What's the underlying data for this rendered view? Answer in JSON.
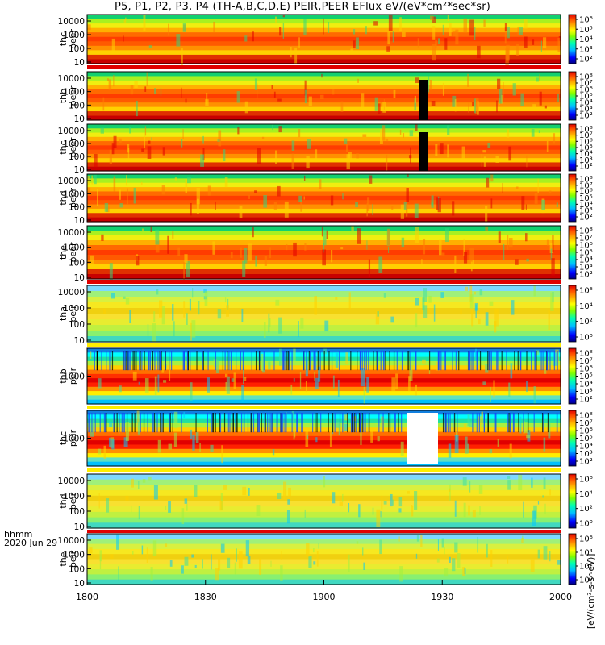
{
  "title": "P5, P1, P2, P3, P4 (TH-A,B,C,D,E) PEIR,PEER EFlux eV/(eV*cm²*sec*sr)",
  "x_caption": {
    "format": "hhmm",
    "date": "2020 Jun 29"
  },
  "colorbar_unit": "[eV/(cm²-s-sr-eV)]",
  "chart_data": {
    "type": "heatmap",
    "x": {
      "label": "hhmm",
      "ticks": [
        "1800",
        "1830",
        "1900",
        "1930",
        "2000"
      ],
      "range": [
        "18:00",
        "20:00"
      ]
    },
    "panels": [
      {
        "label": [
          "thc",
          "peer"
        ],
        "yscale": "log",
        "yticks": [
          "10",
          "100",
          "1000",
          "10000"
        ],
        "cbticks": [
          "10⁶",
          "10⁵",
          "10⁴",
          "10³",
          "10²"
        ]
      },
      {
        "label": [
          "thb",
          "peer"
        ],
        "yscale": "log",
        "yticks": [
          "10",
          "100",
          "1000",
          "10000"
        ],
        "cbticks": [
          "10⁸",
          "10⁷",
          "10⁶",
          "10⁵",
          "10⁴",
          "10³",
          "10²"
        ]
      },
      {
        "label": [
          "thc",
          "peer"
        ],
        "yscale": "log",
        "yticks": [
          "10",
          "100",
          "1000",
          "10000"
        ],
        "cbticks": [
          "10⁸",
          "10⁷",
          "10⁶",
          "10⁵",
          "10⁴",
          "10³",
          "10²"
        ]
      },
      {
        "label": [
          "thd",
          "peer"
        ],
        "yscale": "log",
        "yticks": [
          "10",
          "100",
          "1000",
          "10000"
        ],
        "cbticks": [
          "10⁸",
          "10⁷",
          "10⁶",
          "10⁵",
          "10⁴",
          "10³",
          "10²"
        ]
      },
      {
        "label": [
          "the",
          "peer"
        ],
        "yscale": "log",
        "yticks": [
          "10",
          "100",
          "1000",
          "10000"
        ],
        "cbticks": [
          "10⁸",
          "10⁷",
          "10⁶",
          "10⁵",
          "10⁴",
          "10³",
          "10²"
        ]
      },
      {
        "label": [
          "tha",
          "peir"
        ],
        "yscale": "log",
        "yticks": [
          "10",
          "100",
          "1000",
          "10000"
        ],
        "cbticks": [
          "10⁶",
          "10⁴",
          "10²",
          "10⁰"
        ]
      },
      {
        "label": [
          "thb",
          "peir"
        ],
        "yscale": "log",
        "yticks": [
          "1000"
        ],
        "cbticks": [
          "10⁸",
          "10⁷",
          "10⁶",
          "10⁵",
          "10⁴",
          "10³",
          "10²"
        ]
      },
      {
        "label": [
          "thc",
          "peir"
        ],
        "yscale": "log",
        "yticks": [
          "1000"
        ],
        "cbticks": [
          "10⁸",
          "10⁷",
          "10⁶",
          "10⁵",
          "10⁴",
          "10³",
          "10²"
        ]
      },
      {
        "label": [
          "thd",
          "peir"
        ],
        "yscale": "log",
        "yticks": [
          "10",
          "100",
          "1000",
          "10000"
        ],
        "cbticks": [
          "10⁶",
          "10⁴",
          "10²",
          "10⁰"
        ]
      },
      {
        "label": [
          "the",
          "peir"
        ],
        "yscale": "log",
        "yticks": [
          "10",
          "100",
          "1000",
          "10000"
        ],
        "cbticks": [
          "10⁶",
          "10⁴",
          "10²",
          "10⁰"
        ]
      }
    ],
    "colormap": [
      "#000080",
      "#0000ff",
      "#00bfff",
      "#00ffb0",
      "#7fff00",
      "#ffff00",
      "#ffb000",
      "#ff5000",
      "#e00000"
    ]
  }
}
